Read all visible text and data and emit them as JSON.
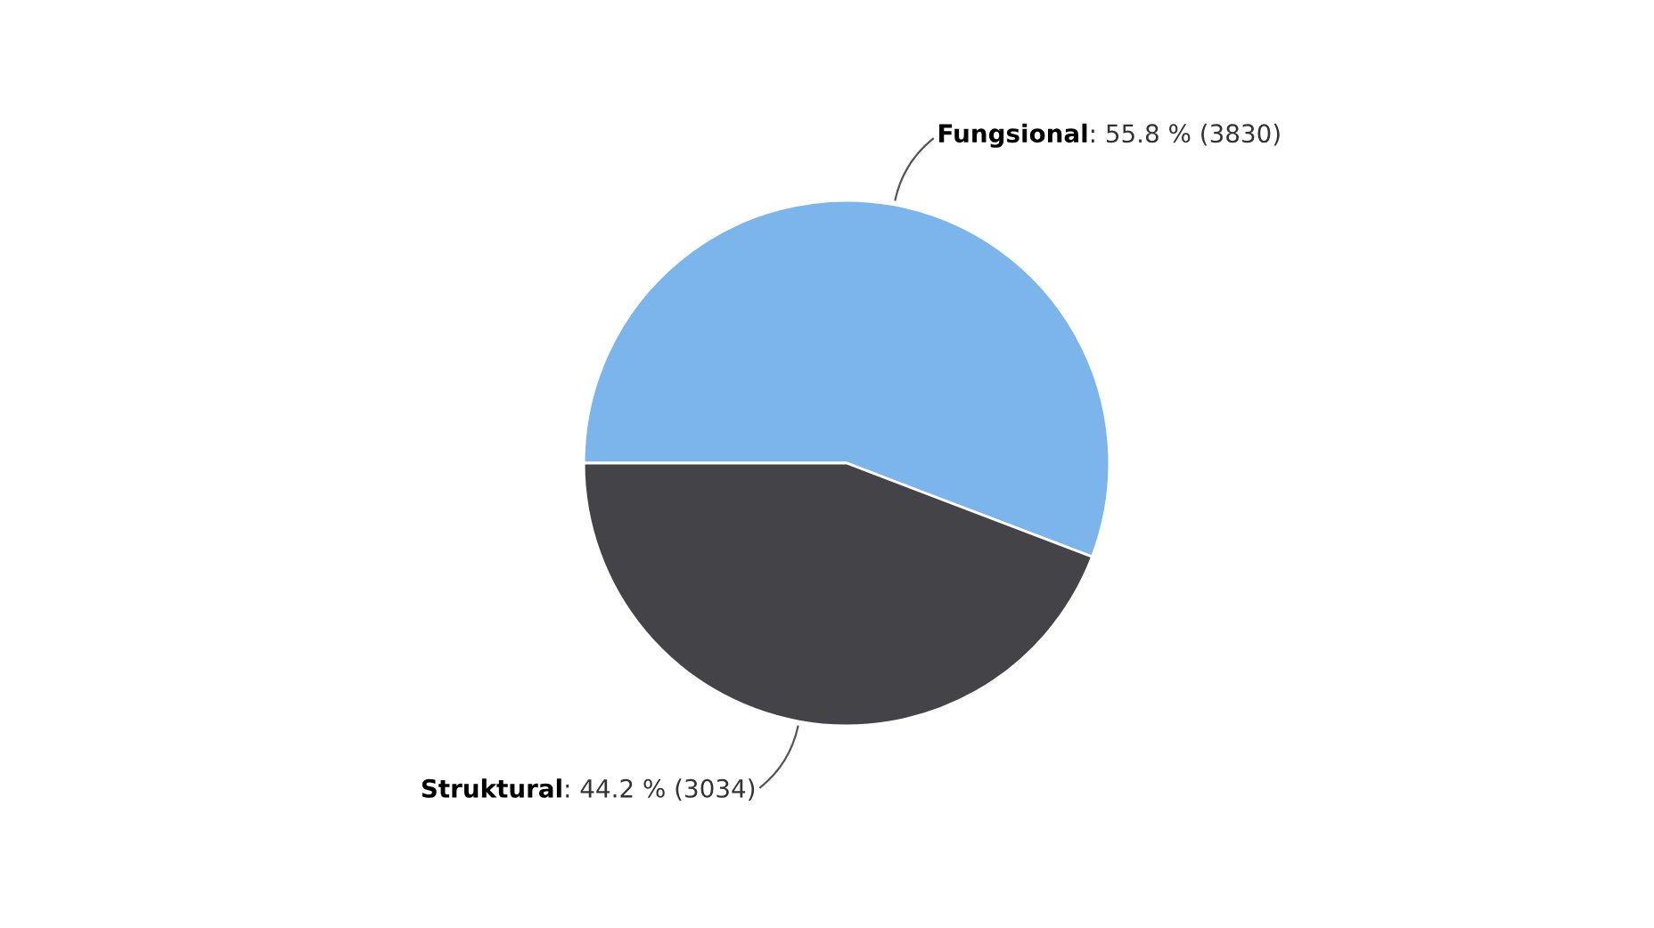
{
  "chart_data": {
    "type": "pie",
    "categories": [
      "Fungsional",
      "Struktural"
    ],
    "values": [
      55.8,
      44.2
    ],
    "colors": [
      "#7cb5ec",
      "#434348"
    ],
    "value_labels": [
      ": 55.8 % (3830)",
      ": 44.2 % (3034)"
    ],
    "legend": false
  }
}
